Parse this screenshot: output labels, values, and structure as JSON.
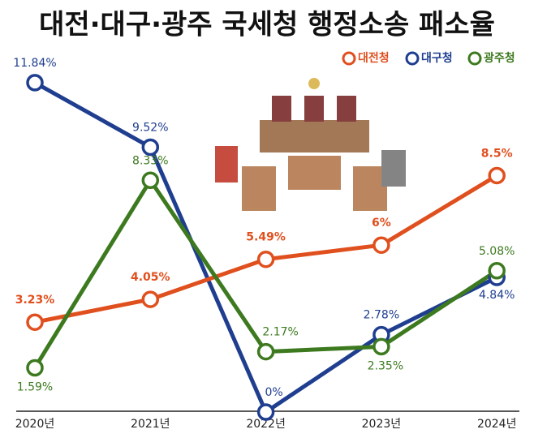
{
  "chart_data": {
    "type": "line",
    "title": "대전·대구·광주 국세청 행정소송 패소율",
    "categories": [
      "2020년",
      "2021년",
      "2022년",
      "2023년",
      "2024년"
    ],
    "series": [
      {
        "name": "대전청",
        "color": "#e0501e",
        "values": [
          3.23,
          4.05,
          5.49,
          6,
          8.5
        ],
        "value_labels": [
          "3.23%",
          "4.05%",
          "5.49%",
          "6%",
          "8.5%"
        ]
      },
      {
        "name": "대구청",
        "color": "#1f3e8f",
        "values": [
          11.84,
          9.52,
          0,
          2.78,
          4.84
        ],
        "value_labels": [
          "11.84%",
          "9.52%",
          "0%",
          "2.78%",
          "4.84%"
        ]
      },
      {
        "name": "광주청",
        "color": "#3d7a1f",
        "values": [
          1.59,
          8.33,
          2.17,
          2.35,
          5.08
        ],
        "value_labels": [
          "1.59%",
          "8.33%",
          "2.17%",
          "2.35%",
          "5.08%"
        ]
      }
    ],
    "legend": "top-right"
  }
}
